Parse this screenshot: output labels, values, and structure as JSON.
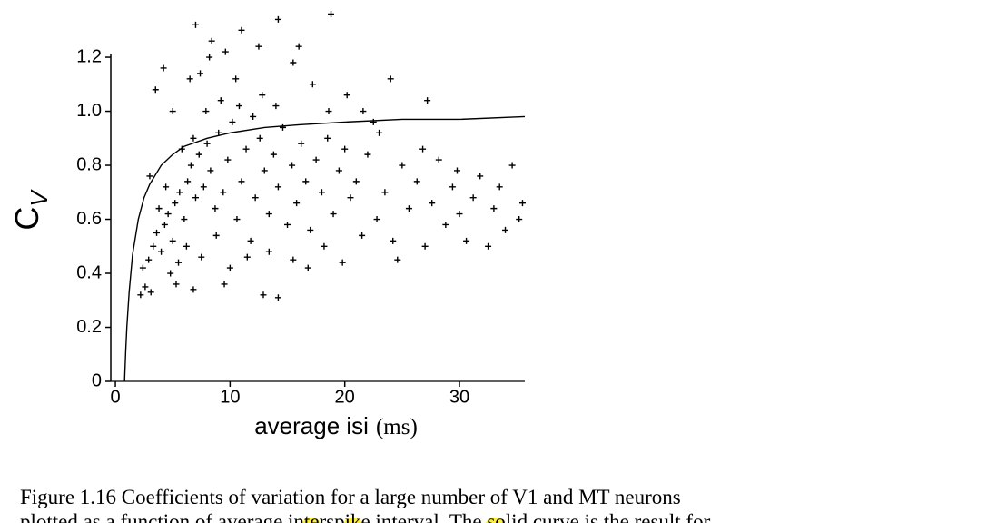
{
  "chart_data": {
    "type": "scatter",
    "y_label": "C",
    "y_label_subscript": "V",
    "x_label": "average isi",
    "x_label_unit": "(ms)",
    "xlim": [
      -0.4,
      35.7
    ],
    "xticks": [
      0,
      10,
      20,
      30
    ],
    "ylim": [
      0,
      1.38
    ],
    "yticks": [
      0,
      0.2,
      0.4,
      0.6,
      0.8,
      {
        "value": 1,
        "label": "1.0"
      },
      1.2
    ],
    "series": [
      {
        "type": "scatter",
        "color": "#000000",
        "x": [
          2.2,
          2.6,
          3.1,
          2.4,
          2.9,
          3.3,
          3.6,
          4.0,
          4.3,
          4.6,
          5.0,
          5.2,
          5.6,
          6.0,
          6.3,
          6.6,
          7.0,
          7.3,
          7.7,
          8.0,
          8.3,
          8.7,
          9.0,
          9.4,
          9.8,
          10.2,
          10.6,
          11.0,
          11.4,
          11.8,
          12.2,
          12.6,
          13.0,
          13.4,
          13.8,
          14.2,
          14.6,
          15.0,
          15.4,
          15.8,
          16.2,
          16.6,
          17.0,
          17.5,
          18.0,
          18.5,
          19.0,
          19.5,
          20.0,
          20.5,
          21.0,
          4.8,
          5.5,
          6.2,
          7.5,
          8.8,
          3.8,
          4.4,
          5.8,
          6.8,
          7.9,
          9.2,
          10.8,
          12.0,
          3.5,
          4.2,
          5.0,
          6.5,
          7.4,
          8.2,
          9.6,
          10.5,
          12.8,
          14.0,
          15.5,
          17.2,
          18.6,
          20.2,
          21.6,
          22.5,
          24.0,
          27.2,
          16.0,
          18.8,
          14.2,
          7.0,
          8.4,
          12.5,
          11.0,
          3.0,
          9.5,
          12.9,
          14.2,
          6.8,
          5.3,
          10.0,
          15.5,
          11.5,
          13.4,
          22.0,
          22.8,
          23.5,
          24.2,
          25.0,
          25.6,
          26.3,
          27.0,
          27.6,
          28.2,
          28.8,
          29.4,
          30.0,
          30.6,
          31.2,
          31.8,
          32.5,
          33.0,
          33.5,
          34.0,
          34.6,
          35.2,
          35.5,
          24.6,
          26.8,
          29.8,
          21.5,
          19.8,
          23.0,
          18.2,
          16.8
        ],
        "values": [
          0.32,
          0.35,
          0.33,
          0.42,
          0.45,
          0.5,
          0.55,
          0.48,
          0.58,
          0.62,
          0.52,
          0.66,
          0.7,
          0.6,
          0.74,
          0.8,
          0.68,
          0.84,
          0.72,
          0.88,
          0.78,
          0.64,
          0.92,
          0.7,
          0.82,
          0.96,
          0.6,
          0.74,
          0.86,
          0.52,
          0.68,
          0.9,
          0.78,
          0.62,
          0.84,
          0.72,
          0.94,
          0.58,
          0.8,
          0.66,
          0.88,
          0.74,
          0.56,
          0.82,
          0.7,
          0.9,
          0.62,
          0.78,
          0.86,
          0.68,
          0.74,
          0.4,
          0.44,
          0.5,
          0.46,
          0.54,
          0.64,
          0.72,
          0.86,
          0.9,
          1.0,
          1.04,
          1.02,
          0.98,
          1.08,
          1.16,
          1.0,
          1.12,
          1.14,
          1.2,
          1.22,
          1.12,
          1.06,
          1.02,
          1.18,
          1.1,
          1.0,
          1.06,
          1.0,
          0.96,
          1.12,
          1.04,
          1.24,
          1.36,
          1.34,
          1.32,
          1.26,
          1.24,
          1.3,
          0.76,
          0.36,
          0.32,
          0.31,
          0.34,
          0.36,
          0.42,
          0.45,
          0.46,
          0.48,
          0.84,
          0.6,
          0.7,
          0.52,
          0.8,
          0.64,
          0.74,
          0.5,
          0.66,
          0.82,
          0.58,
          0.72,
          0.62,
          0.52,
          0.68,
          0.76,
          0.5,
          0.64,
          0.72,
          0.56,
          0.8,
          0.6,
          0.66,
          0.45,
          0.86,
          0.78,
          0.54,
          0.44,
          0.92,
          0.5,
          0.42
        ]
      },
      {
        "type": "line",
        "color": "#000000",
        "x": [
          0.8,
          0.9,
          1,
          1.2,
          1.5,
          2,
          2.5,
          3,
          4,
          5,
          6,
          8,
          10,
          13,
          16,
          20,
          25,
          30,
          35.7
        ],
        "values": [
          0,
          0.11,
          0.2,
          0.33,
          0.47,
          0.6,
          0.68,
          0.73,
          0.8,
          0.84,
          0.87,
          0.9,
          0.92,
          0.94,
          0.95,
          0.96,
          0.97,
          0.97,
          0.98
        ]
      }
    ]
  },
  "caption": {
    "lines": [
      "Figure 1.16 Coefficients of variation for a large number of V1 and MT neurons",
      "plotted as a function of average interspike interval. The solid curve is the result for"
    ]
  }
}
